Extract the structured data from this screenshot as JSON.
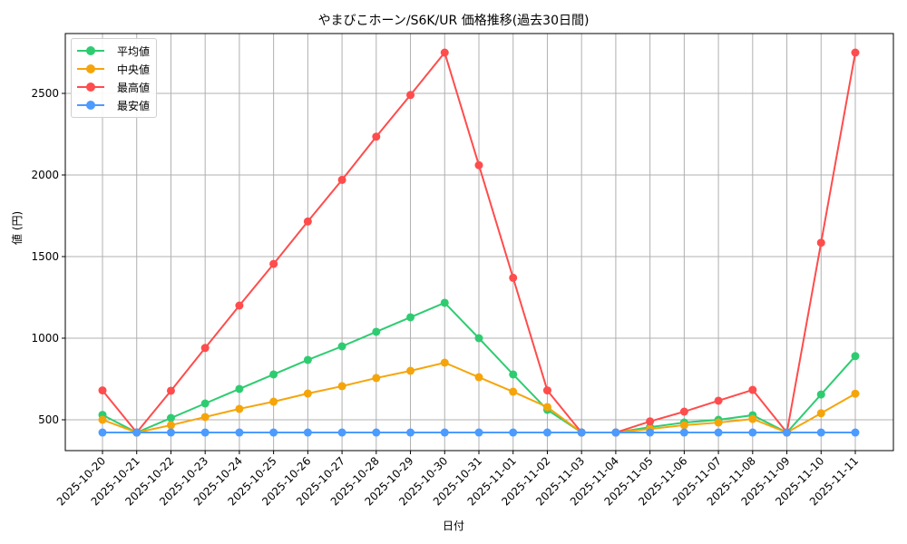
{
  "chart_data": {
    "type": "line",
    "title": "やまびこホーン/S6K/UR 価格推移(過去30日間)",
    "xlabel": "日付",
    "ylabel": "値 (円)",
    "ylim": [
      300,
      2860
    ],
    "yticks": [
      500,
      1000,
      1500,
      2000,
      2500
    ],
    "grid": true,
    "legend_position": "upper left",
    "categories": [
      "2025-10-20",
      "2025-10-21",
      "2025-10-22",
      "2025-10-23",
      "2025-10-24",
      "2025-10-25",
      "2025-10-26",
      "2025-10-27",
      "2025-10-28",
      "2025-10-29",
      "2025-10-30",
      "2025-10-31",
      "2025-11-01",
      "2025-11-02",
      "2025-11-03",
      "2025-11-04",
      "2025-11-05",
      "2025-11-06",
      "2025-11-07",
      "2025-11-08",
      "2025-11-09",
      "2025-11-10",
      "2025-11-11"
    ],
    "series": [
      {
        "name": "平均値",
        "color": "#2ecc71",
        "values": [
          530,
          422,
          511,
          600,
          689,
          778,
          867,
          950,
          1039,
          1128,
          1217,
          1000,
          778,
          561,
          422,
          422,
          455,
          483,
          500,
          528,
          422,
          655,
          890
        ]
      },
      {
        "name": "中央値",
        "color": "#f5a50a",
        "values": [
          500,
          422,
          467,
          517,
          567,
          611,
          661,
          706,
          756,
          800,
          850,
          761,
          672,
          578,
          422,
          422,
          444,
          467,
          483,
          505,
          422,
          540,
          660
        ]
      },
      {
        "name": "最高値",
        "color": "#ff4c4c",
        "values": [
          680,
          422,
          678,
          940,
          1200,
          1455,
          1715,
          1970,
          2235,
          2490,
          2750,
          2060,
          1370,
          680,
          422,
          422,
          490,
          550,
          617,
          683,
          422,
          1585,
          2750
        ]
      },
      {
        "name": "最安値",
        "color": "#4c9bff",
        "values": [
          422,
          422,
          422,
          422,
          422,
          422,
          422,
          422,
          422,
          422,
          422,
          422,
          422,
          422,
          422,
          422,
          422,
          422,
          422,
          422,
          422,
          422,
          422
        ]
      }
    ]
  }
}
